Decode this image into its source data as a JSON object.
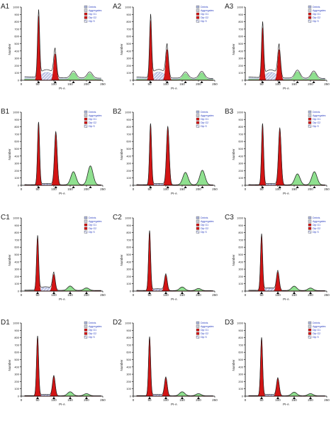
{
  "figure": {
    "x_ticks": [
      0,
      50,
      100,
      150,
      200,
      250
    ],
    "y_ticks": [
      0,
      100,
      200,
      300,
      400,
      500,
      600,
      700,
      800,
      900,
      1000
    ],
    "xlabel": "PI-A",
    "ylabel": "Number",
    "legend": [
      "Debris",
      "Aggregates",
      "Dip G1",
      "Dip G2",
      "Dip S"
    ],
    "colors": {
      "debris": "#aab4d8",
      "aggregates": "#c8ccd8",
      "g1": "#d31515",
      "g2": "#d31515",
      "s": "#6a78c8",
      "polyploid": "#8fe08f",
      "outline": "#222222"
    }
  },
  "chart_data": [
    {
      "type": "area",
      "panel": "A1",
      "xlim": [
        0,
        250
      ],
      "ylim": [
        0,
        1000
      ],
      "g1": {
        "mean": 53,
        "height": 880
      },
      "g2": {
        "mean": 104,
        "height": 360
      },
      "s_level": 90,
      "extra": [
        {
          "mean": 160,
          "height": 95
        },
        {
          "mean": 210,
          "height": 85
        }
      ],
      "debris_baseline": 50
    },
    {
      "type": "area",
      "panel": "A2",
      "xlim": [
        0,
        250
      ],
      "ylim": [
        0,
        1000
      ],
      "g1": {
        "mean": 53,
        "height": 820
      },
      "g2": {
        "mean": 104,
        "height": 420
      },
      "s_level": 95,
      "extra": [
        {
          "mean": 160,
          "height": 85
        },
        {
          "mean": 210,
          "height": 95
        }
      ],
      "debris_baseline": 45
    },
    {
      "type": "area",
      "panel": "A3",
      "xlim": [
        0,
        250
      ],
      "ylim": [
        0,
        1000
      ],
      "g1": {
        "mean": 53,
        "height": 720
      },
      "g2": {
        "mean": 104,
        "height": 420
      },
      "s_level": 90,
      "extra": [
        {
          "mean": 160,
          "height": 110
        },
        {
          "mean": 210,
          "height": 100
        }
      ],
      "debris_baseline": 45
    },
    {
      "type": "area",
      "panel": "B1",
      "xlim": [
        0,
        250
      ],
      "ylim": [
        0,
        1000
      ],
      "g1": {
        "mean": 53,
        "height": 850
      },
      "g2": {
        "mean": 106,
        "height": 720
      },
      "s_level": 15,
      "extra": [
        {
          "mean": 160,
          "height": 180
        },
        {
          "mean": 212,
          "height": 260
        }
      ],
      "debris_baseline": 10
    },
    {
      "type": "area",
      "panel": "B2",
      "xlim": [
        0,
        250
      ],
      "ylim": [
        0,
        1000
      ],
      "g1": {
        "mean": 53,
        "height": 830
      },
      "g2": {
        "mean": 106,
        "height": 790
      },
      "s_level": 15,
      "extra": [
        {
          "mean": 160,
          "height": 170
        },
        {
          "mean": 212,
          "height": 200
        }
      ],
      "debris_baseline": 10
    },
    {
      "type": "area",
      "panel": "B3",
      "xlim": [
        0,
        250
      ],
      "ylim": [
        0,
        1000
      ],
      "g1": {
        "mean": 53,
        "height": 830
      },
      "g2": {
        "mean": 106,
        "height": 770
      },
      "s_level": 15,
      "extra": [
        {
          "mean": 160,
          "height": 150
        },
        {
          "mean": 212,
          "height": 180
        }
      ],
      "debris_baseline": 10
    },
    {
      "type": "area",
      "panel": "C1",
      "xlim": [
        0,
        250
      ],
      "ylim": [
        0,
        1000
      ],
      "g1": {
        "mean": 50,
        "height": 730
      },
      "g2": {
        "mean": 100,
        "height": 230
      },
      "s_level": 40,
      "extra": [
        {
          "mean": 150,
          "height": 60
        },
        {
          "mean": 200,
          "height": 35
        }
      ],
      "debris_baseline": 15
    },
    {
      "type": "area",
      "panel": "C2",
      "xlim": [
        0,
        250
      ],
      "ylim": [
        0,
        1000
      ],
      "g1": {
        "mean": 50,
        "height": 810
      },
      "g2": {
        "mean": 100,
        "height": 220
      },
      "s_level": 20,
      "extra": [
        {
          "mean": 150,
          "height": 50
        },
        {
          "mean": 200,
          "height": 30
        }
      ],
      "debris_baseline": 10
    },
    {
      "type": "area",
      "panel": "C3",
      "xlim": [
        0,
        250
      ],
      "ylim": [
        0,
        1000
      ],
      "g1": {
        "mean": 50,
        "height": 760
      },
      "g2": {
        "mean": 100,
        "height": 260
      },
      "s_level": 30,
      "extra": [
        {
          "mean": 150,
          "height": 60
        },
        {
          "mean": 200,
          "height": 35
        }
      ],
      "debris_baseline": 12
    },
    {
      "type": "area",
      "panel": "D1",
      "xlim": [
        0,
        250
      ],
      "ylim": [
        0,
        1000
      ],
      "g1": {
        "mean": 50,
        "height": 810
      },
      "g2": {
        "mean": 100,
        "height": 270
      },
      "s_level": 15,
      "extra": [
        {
          "mean": 150,
          "height": 55
        },
        {
          "mean": 200,
          "height": 30
        }
      ],
      "debris_baseline": 8
    },
    {
      "type": "area",
      "panel": "D2",
      "xlim": [
        0,
        250
      ],
      "ylim": [
        0,
        1000
      ],
      "g1": {
        "mean": 50,
        "height": 800
      },
      "g2": {
        "mean": 100,
        "height": 250
      },
      "s_level": 15,
      "extra": [
        {
          "mean": 150,
          "height": 55
        },
        {
          "mean": 200,
          "height": 30
        }
      ],
      "debris_baseline": 8
    },
    {
      "type": "area",
      "panel": "D3",
      "xlim": [
        0,
        250
      ],
      "ylim": [
        0,
        1000
      ],
      "g1": {
        "mean": 50,
        "height": 790
      },
      "g2": {
        "mean": 100,
        "height": 240
      },
      "s_level": 15,
      "extra": [
        {
          "mean": 150,
          "height": 50
        },
        {
          "mean": 200,
          "height": 30
        }
      ],
      "debris_baseline": 8
    }
  ]
}
